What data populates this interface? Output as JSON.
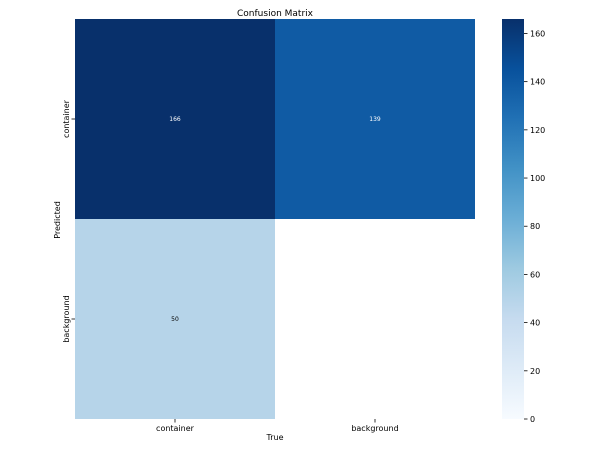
{
  "chart_data": {
    "type": "heatmap",
    "title": "Confusion Matrix",
    "xlabel": "True",
    "ylabel": "Predicted",
    "x_categories": [
      "container",
      "background"
    ],
    "y_categories": [
      "container",
      "background"
    ],
    "values": [
      [
        166,
        139
      ],
      [
        50,
        null
      ]
    ],
    "cell_labels": [
      [
        "166",
        "139"
      ],
      [
        "50",
        ""
      ]
    ],
    "colorbar": {
      "colormap": "Blues",
      "min": 0,
      "max": 166,
      "ticks": [
        0,
        20,
        40,
        60,
        80,
        100,
        120,
        140,
        160
      ],
      "tick_labels": [
        "0",
        "20",
        "40",
        "60",
        "80",
        "100",
        "120",
        "140",
        "160"
      ]
    },
    "empty_cell_color": "#ffffff"
  }
}
